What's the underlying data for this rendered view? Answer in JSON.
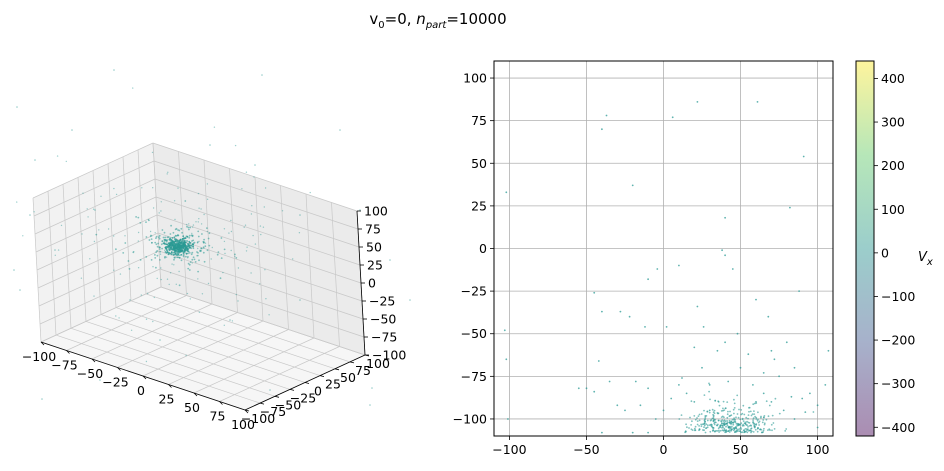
{
  "figure": {
    "title_main": "v",
    "title_sub0": "0",
    "title_mid": "=0, ",
    "title_n": "n",
    "title_subpart": "part",
    "title_end": "=10000"
  },
  "chart_data": [
    {
      "type": "scatter",
      "name": "3d-view",
      "projection": "3d",
      "n_particles": 10000,
      "x_ticks": [
        "−100",
        "−75",
        "−50",
        "−25",
        "0",
        "25",
        "50",
        "75",
        "100"
      ],
      "y_ticks": [
        "−100",
        "−75",
        "−50",
        "−25",
        "0",
        "25",
        "50",
        "75",
        "100"
      ],
      "z_ticks": [
        "100",
        "75",
        "50",
        "25",
        "0",
        "−25",
        "−50",
        "−75",
        "−100"
      ],
      "xlim": [
        -100,
        100
      ],
      "ylim": [
        -100,
        100
      ],
      "zlim": [
        -100,
        100
      ],
      "cluster_center": [
        0,
        0,
        0
      ],
      "point_color": "#2a9a94",
      "grid": true
    },
    {
      "type": "scatter",
      "name": "2d-projection",
      "xlim": [
        -110,
        110
      ],
      "ylim": [
        -110,
        110
      ],
      "x_ticks": [
        "−100",
        "−50",
        "0",
        "50",
        "100"
      ],
      "y_ticks": [
        "100",
        "75",
        "50",
        "25",
        "0",
        "−25",
        "−50",
        "−75",
        "−100"
      ],
      "x_tick_values": [
        -100,
        -50,
        0,
        50,
        100
      ],
      "y_tick_values": [
        100,
        75,
        50,
        25,
        0,
        -25,
        -50,
        -75,
        -100
      ],
      "grid": true,
      "point_color": "#2a9a94",
      "points": [
        [
          -102,
          33
        ],
        [
          -103,
          -48
        ],
        [
          -102,
          -65
        ],
        [
          -101,
          -100
        ],
        [
          -40,
          70
        ],
        [
          -37,
          78
        ],
        [
          -20,
          37
        ],
        [
          22,
          86
        ],
        [
          6,
          77
        ],
        [
          61,
          86
        ],
        [
          91,
          54
        ],
        [
          82,
          24
        ],
        [
          40,
          18
        ],
        [
          -4,
          -12
        ],
        [
          10,
          -10
        ],
        [
          38,
          -1
        ],
        [
          40,
          -4
        ],
        [
          45,
          -12
        ],
        [
          -45,
          -26
        ],
        [
          -40,
          -37
        ],
        [
          -28,
          -37
        ],
        [
          -22,
          -40
        ],
        [
          -12,
          -46
        ],
        [
          2,
          -46
        ],
        [
          22,
          -34
        ],
        [
          26,
          -46
        ],
        [
          48,
          -50
        ],
        [
          60,
          -30
        ],
        [
          68,
          -40
        ],
        [
          88,
          -25
        ],
        [
          107,
          -60
        ],
        [
          80,
          -55
        ],
        [
          -10,
          -18
        ],
        [
          -50,
          -82
        ],
        [
          -42,
          -66
        ],
        [
          -35,
          -78
        ],
        [
          -18,
          -78
        ],
        [
          -10,
          -82
        ],
        [
          10,
          -80
        ],
        [
          15,
          -85
        ],
        [
          25,
          -70
        ],
        [
          35,
          -60
        ],
        [
          40,
          -55
        ],
        [
          55,
          -62
        ],
        [
          70,
          -60
        ],
        [
          75,
          -75
        ],
        [
          85,
          -70
        ],
        [
          95,
          -85
        ],
        [
          105,
          -80
        ],
        [
          -45,
          -84
        ],
        [
          -30,
          -92
        ],
        [
          -25,
          -95
        ],
        [
          -15,
          -92
        ],
        [
          -5,
          -100
        ],
        [
          0,
          -95
        ],
        [
          5,
          -88
        ],
        [
          20,
          -90
        ],
        [
          30,
          -95
        ],
        [
          60,
          -90
        ],
        [
          65,
          -85
        ],
        [
          70,
          -90
        ],
        [
          78,
          -95
        ],
        [
          85,
          -100
        ],
        [
          92,
          -96
        ],
        [
          100,
          -92
        ],
        [
          -40,
          -108
        ],
        [
          -20,
          -108
        ],
        [
          -10,
          -108
        ],
        [
          100,
          -105
        ],
        [
          -55,
          -82
        ],
        [
          20,
          -58
        ],
        [
          30,
          -80
        ],
        [
          58,
          -80
        ],
        [
          42,
          -78
        ],
        [
          50,
          -70
        ],
        [
          65,
          -73
        ],
        [
          72,
          -65
        ],
        [
          83,
          -87
        ],
        [
          90,
          -88
        ],
        [
          12,
          -76
        ]
      ],
      "cluster": {
        "center": [
          44,
          -108
        ],
        "spread": [
          14,
          6
        ]
      },
      "colorbar": {
        "label": "V",
        "label_sub": "x",
        "min": -420,
        "max": 440,
        "ticks": [
          "400",
          "300",
          "200",
          "100",
          "0",
          "−100",
          "−200",
          "−300",
          "−400"
        ],
        "tick_values": [
          400,
          300,
          200,
          100,
          0,
          -100,
          -200,
          -300,
          -400
        ],
        "colors": [
          "#440154",
          "#3b528b",
          "#21918c",
          "#5ec962",
          "#fde725"
        ],
        "alpha": 0.45
      }
    }
  ]
}
